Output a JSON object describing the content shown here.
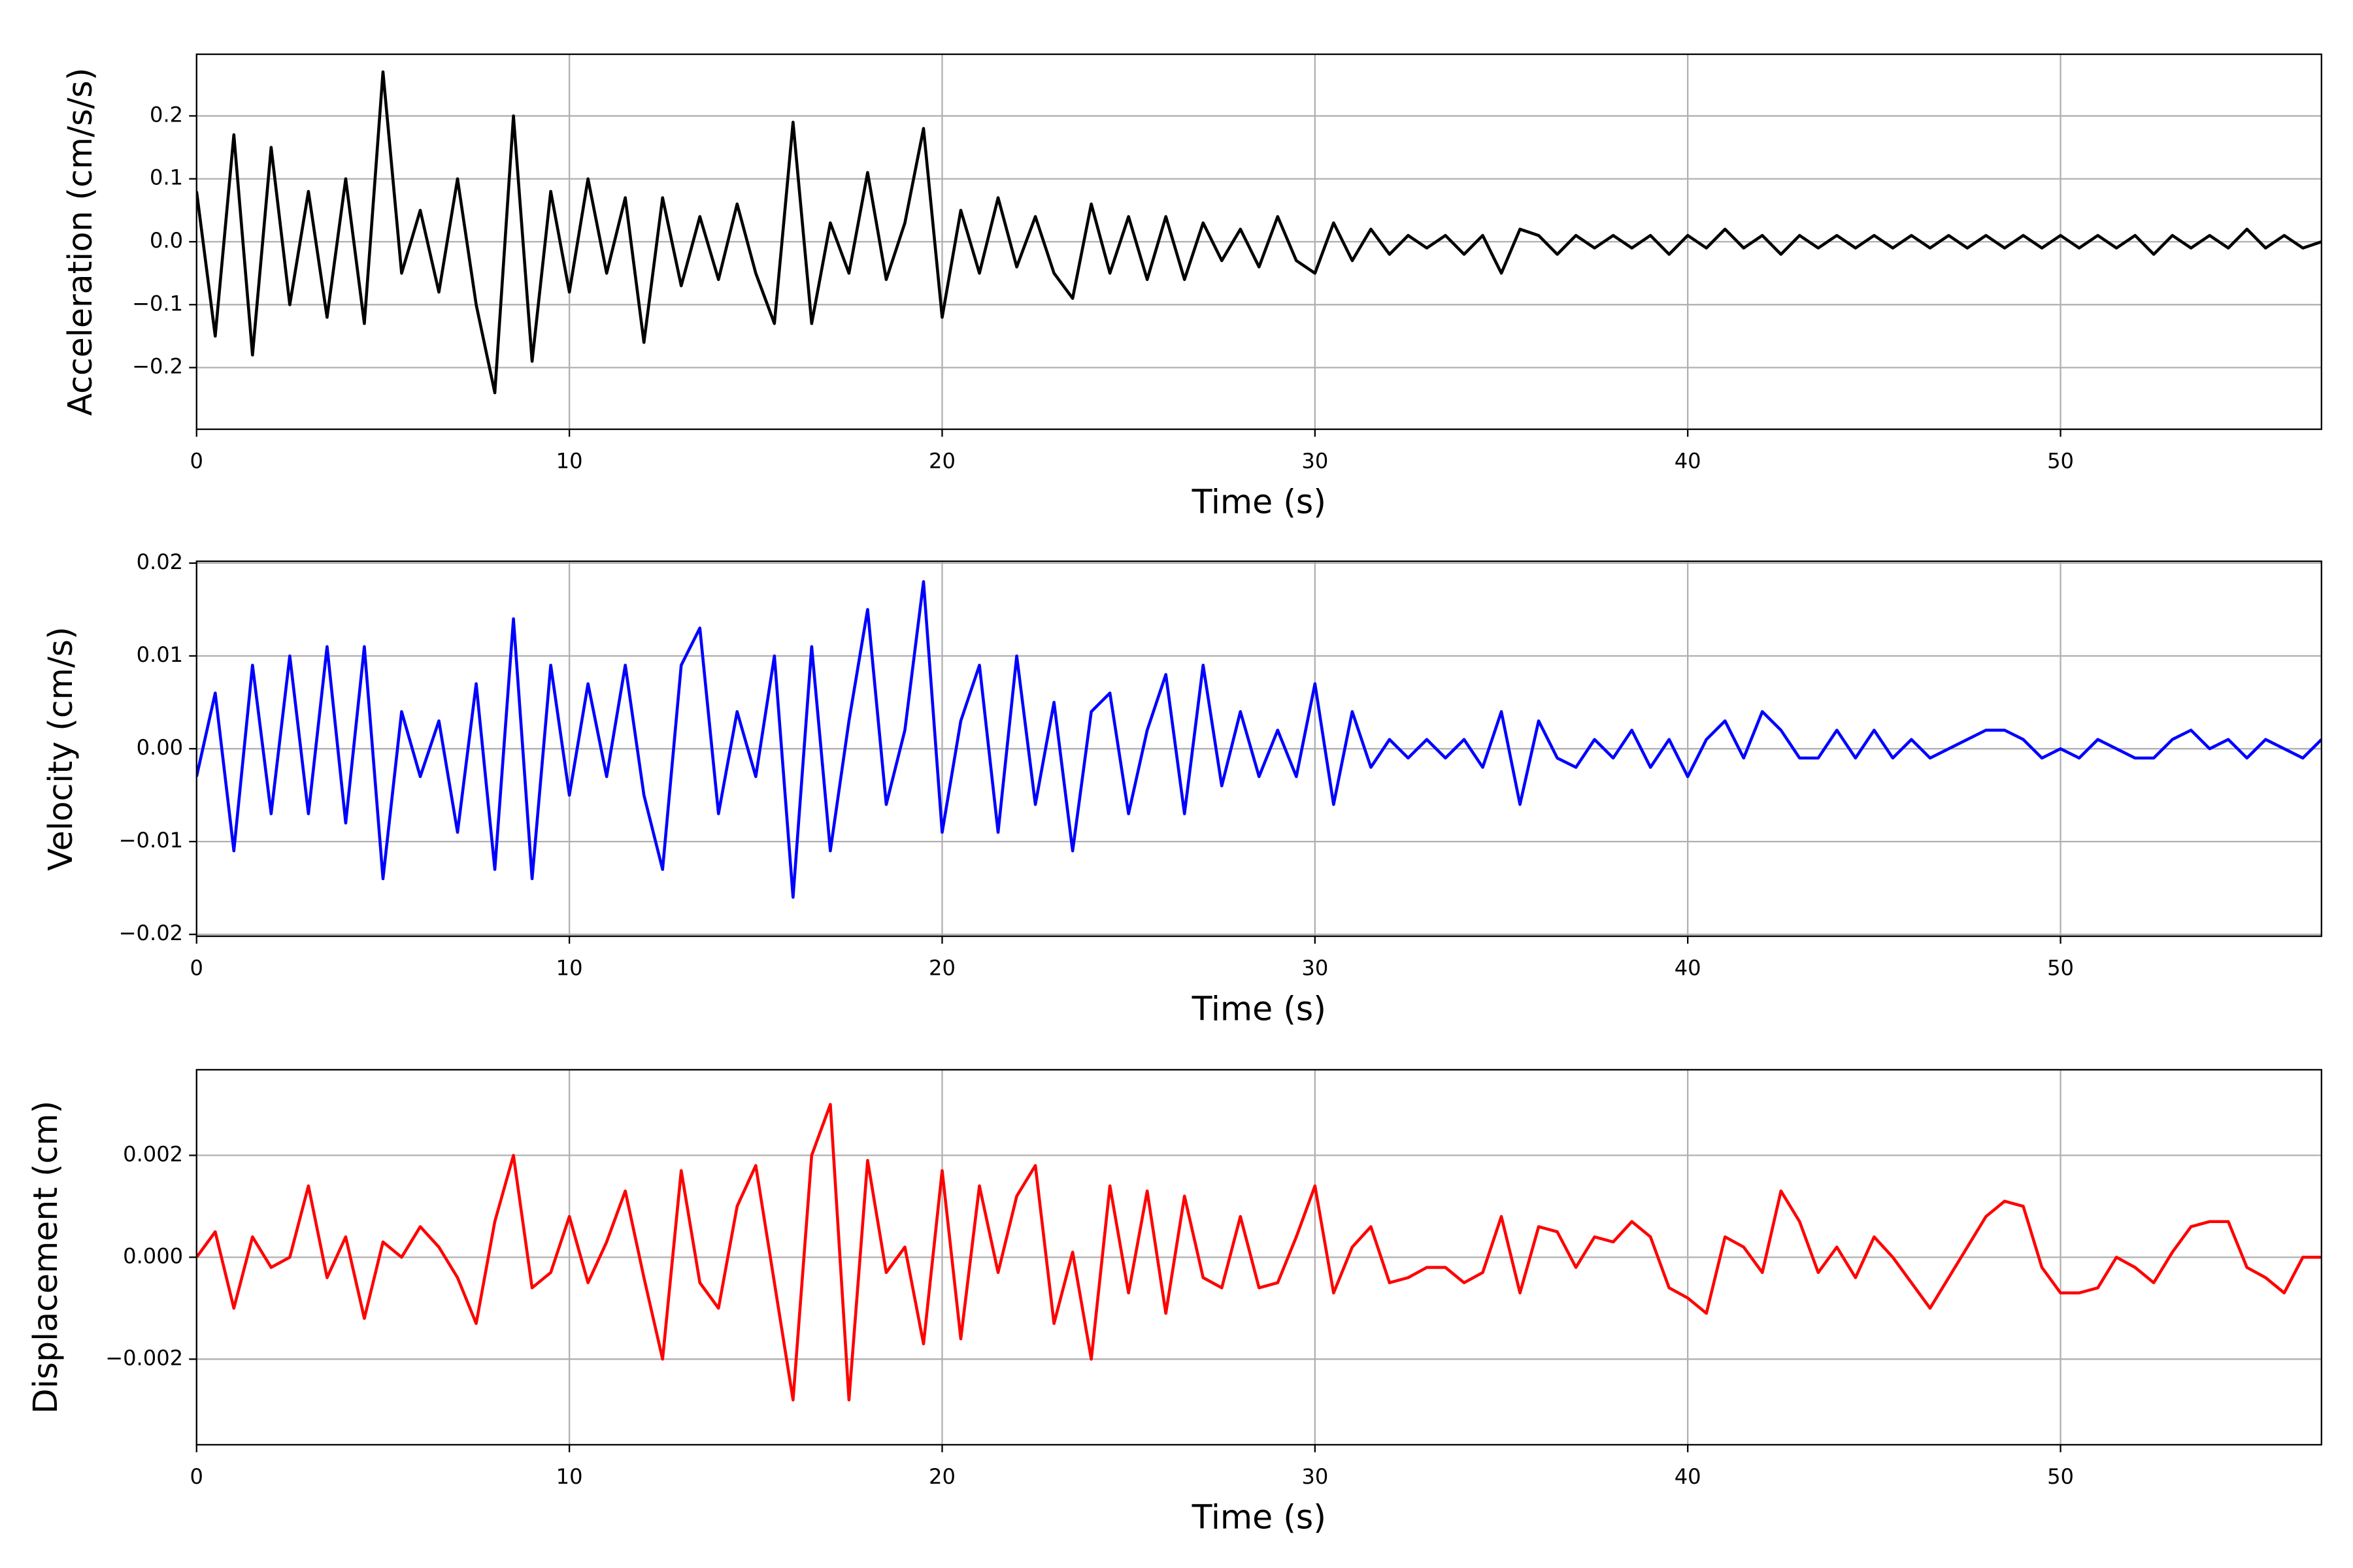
{
  "chart_data": [
    {
      "type": "line",
      "ylabel": "Acceleration (cm/s/s)",
      "xlabel": "Time (s)",
      "color": "#000000",
      "grid": true,
      "xlim": [
        0,
        57
      ],
      "xticks": [
        0,
        10,
        20,
        30,
        40,
        50
      ],
      "ylim": [
        -0.298,
        0.298
      ],
      "yticks": [
        {
          "value": -0.2,
          "label": "−0.2"
        },
        {
          "value": -0.1,
          "label": "−0.1"
        },
        {
          "value": 0,
          "label": "0.0"
        },
        0.1,
        0.2
      ],
      "x": [
        0,
        0.5,
        1,
        1.5,
        2,
        2.5,
        3,
        3.5,
        4,
        4.5,
        5,
        5.5,
        6,
        6.5,
        7,
        7.5,
        8,
        8.5,
        9,
        9.5,
        10,
        10.5,
        11,
        11.5,
        12,
        12.5,
        13,
        13.5,
        14,
        14.5,
        15,
        15.5,
        16,
        16.5,
        17,
        17.5,
        18,
        18.5,
        19,
        19.5,
        20,
        20.5,
        21,
        21.5,
        22,
        22.5,
        23,
        23.5,
        24,
        24.5,
        25,
        25.5,
        26,
        26.5,
        27,
        27.5,
        28,
        28.5,
        29,
        29.5,
        30,
        30.5,
        31,
        31.5,
        32,
        32.5,
        33,
        33.5,
        34,
        34.5,
        35,
        35.5,
        36,
        36.5,
        37,
        37.5,
        38,
        38.5,
        39,
        39.5,
        40,
        40.5,
        41,
        41.5,
        42,
        42.5,
        43,
        43.5,
        44,
        44.5,
        45,
        45.5,
        46,
        46.5,
        47,
        47.5,
        48,
        48.5,
        49,
        49.5,
        50,
        50.5,
        51,
        51.5,
        52,
        52.5,
        53,
        53.5,
        54,
        54.5,
        55,
        55.5,
        56,
        56.5,
        57
      ],
      "values": [
        0.08,
        -0.15,
        0.17,
        -0.18,
        0.15,
        -0.1,
        0.08,
        -0.12,
        0.1,
        -0.13,
        0.27,
        -0.05,
        0.05,
        -0.08,
        0.1,
        -0.1,
        -0.24,
        0.2,
        -0.19,
        0.08,
        -0.08,
        0.1,
        -0.05,
        0.07,
        -0.16,
        0.07,
        -0.07,
        0.04,
        -0.06,
        0.06,
        -0.05,
        -0.13,
        0.19,
        -0.13,
        0.03,
        -0.05,
        0.11,
        -0.06,
        0.03,
        0.18,
        -0.12,
        0.05,
        -0.05,
        0.07,
        -0.04,
        0.04,
        -0.05,
        -0.09,
        0.06,
        -0.05,
        0.04,
        -0.06,
        0.04,
        -0.06,
        0.03,
        -0.03,
        0.02,
        -0.04,
        0.04,
        -0.03,
        -0.05,
        0.03,
        -0.03,
        0.02,
        -0.02,
        0.01,
        -0.01,
        0.01,
        -0.02,
        0.01,
        -0.05,
        0.02,
        0.01,
        -0.02,
        0.01,
        -0.01,
        0.01,
        -0.01,
        0.01,
        -0.02,
        0.01,
        -0.01,
        0.02,
        -0.01,
        0.01,
        -0.02,
        0.01,
        -0.01,
        0.01,
        -0.01,
        0.01,
        -0.01,
        0.01,
        -0.01,
        0.01,
        -0.01,
        0.01,
        -0.01,
        0.01,
        -0.01,
        0.01,
        -0.01,
        0.01,
        -0.01,
        0.01,
        -0.02,
        0.01,
        -0.01,
        0.01,
        -0.01,
        0.02,
        -0.01,
        0.01,
        -0.01,
        0.0
      ]
    },
    {
      "type": "line",
      "ylabel": "Velocity (cm/s)",
      "xlabel": "Time (s)",
      "color": "#0000ff",
      "grid": true,
      "xlim": [
        0,
        57
      ],
      "xticks": [
        0,
        10,
        20,
        30,
        40,
        50
      ],
      "ylim": [
        -0.0202,
        0.0202
      ],
      "yticks": [
        {
          "value": -0.02,
          "label": "−0.02"
        },
        {
          "value": -0.01,
          "label": "−0.01"
        },
        {
          "value": 0,
          "label": "0.00"
        },
        0.01,
        0.02
      ],
      "x": [
        0,
        0.5,
        1,
        1.5,
        2,
        2.5,
        3,
        3.5,
        4,
        4.5,
        5,
        5.5,
        6,
        6.5,
        7,
        7.5,
        8,
        8.5,
        9,
        9.5,
        10,
        10.5,
        11,
        11.5,
        12,
        12.5,
        13,
        13.5,
        14,
        14.5,
        15,
        15.5,
        16,
        16.5,
        17,
        17.5,
        18,
        18.5,
        19,
        19.5,
        20,
        20.5,
        21,
        21.5,
        22,
        22.5,
        23,
        23.5,
        24,
        24.5,
        25,
        25.5,
        26,
        26.5,
        27,
        27.5,
        28,
        28.5,
        29,
        29.5,
        30,
        30.5,
        31,
        31.5,
        32,
        32.5,
        33,
        33.5,
        34,
        34.5,
        35,
        35.5,
        36,
        36.5,
        37,
        37.5,
        38,
        38.5,
        39,
        39.5,
        40,
        40.5,
        41,
        41.5,
        42,
        42.5,
        43,
        43.5,
        44,
        44.5,
        45,
        45.5,
        46,
        46.5,
        47,
        47.5,
        48,
        48.5,
        49,
        49.5,
        50,
        50.5,
        51,
        51.5,
        52,
        52.5,
        53,
        53.5,
        54,
        54.5,
        55,
        55.5,
        56,
        56.5,
        57
      ],
      "values": [
        -0.003,
        0.006,
        -0.011,
        0.009,
        -0.007,
        0.01,
        -0.007,
        0.011,
        -0.008,
        0.011,
        -0.014,
        0.004,
        -0.003,
        0.003,
        -0.009,
        0.007,
        -0.013,
        0.014,
        -0.014,
        0.009,
        -0.005,
        0.007,
        -0.003,
        0.009,
        -0.005,
        -0.013,
        0.009,
        0.013,
        -0.007,
        0.004,
        -0.003,
        0.01,
        -0.016,
        0.011,
        -0.011,
        0.003,
        0.015,
        -0.006,
        0.002,
        0.018,
        -0.009,
        0.003,
        0.009,
        -0.009,
        0.01,
        -0.006,
        0.005,
        -0.011,
        0.004,
        0.006,
        -0.007,
        0.002,
        0.008,
        -0.007,
        0.009,
        -0.004,
        0.004,
        -0.003,
        0.002,
        -0.003,
        0.007,
        -0.006,
        0.004,
        -0.002,
        0.001,
        -0.001,
        0.001,
        -0.001,
        0.001,
        -0.002,
        0.004,
        -0.006,
        0.003,
        -0.001,
        -0.002,
        0.001,
        -0.001,
        0.002,
        -0.002,
        0.001,
        -0.003,
        0.001,
        0.003,
        -0.001,
        0.004,
        0.002,
        -0.001,
        -0.001,
        0.002,
        -0.001,
        0.002,
        -0.001,
        0.001,
        -0.001,
        0.0,
        0.001,
        0.002,
        0.002,
        0.001,
        -0.001,
        0.0,
        -0.001,
        0.001,
        0.0,
        -0.001,
        -0.001,
        0.001,
        0.002,
        0.0,
        0.001,
        -0.001,
        0.001,
        0.0,
        -0.001,
        0.001
      ]
    },
    {
      "type": "line",
      "ylabel": "Displacement (cm)",
      "xlabel": "Time (s)",
      "color": "#ff0000",
      "grid": true,
      "xlim": [
        0,
        57
      ],
      "xticks": [
        0,
        10,
        20,
        30,
        40,
        50
      ],
      "ylim": [
        -0.00368,
        0.00368
      ],
      "yticks": [
        {
          "value": -0.002,
          "label": "−0.002"
        },
        {
          "value": 0,
          "label": "0.000"
        },
        0.002
      ],
      "x": [
        0,
        0.5,
        1,
        1.5,
        2,
        2.5,
        3,
        3.5,
        4,
        4.5,
        5,
        5.5,
        6,
        6.5,
        7,
        7.5,
        8,
        8.5,
        9,
        9.5,
        10,
        10.5,
        11,
        11.5,
        12,
        12.5,
        13,
        13.5,
        14,
        14.5,
        15,
        15.5,
        16,
        16.5,
        17,
        17.5,
        18,
        18.5,
        19,
        19.5,
        20,
        20.5,
        21,
        21.5,
        22,
        22.5,
        23,
        23.5,
        24,
        24.5,
        25,
        25.5,
        26,
        26.5,
        27,
        27.5,
        28,
        28.5,
        29,
        29.5,
        30,
        30.5,
        31,
        31.5,
        32,
        32.5,
        33,
        33.5,
        34,
        34.5,
        35,
        35.5,
        36,
        36.5,
        37,
        37.5,
        38,
        38.5,
        39,
        39.5,
        40,
        40.5,
        41,
        41.5,
        42,
        42.5,
        43,
        43.5,
        44,
        44.5,
        45,
        45.5,
        46,
        46.5,
        47,
        47.5,
        48,
        48.5,
        49,
        49.5,
        50,
        50.5,
        51,
        51.5,
        52,
        52.5,
        53,
        53.5,
        54,
        54.5,
        55,
        55.5,
        56,
        56.5,
        57
      ],
      "values": [
        0.0,
        0.0005,
        -0.001,
        0.0004,
        -0.0002,
        0.0,
        0.0014,
        -0.0004,
        0.0004,
        -0.0012,
        0.0003,
        0.0,
        0.0006,
        0.0002,
        -0.0004,
        -0.0013,
        0.0007,
        0.002,
        -0.0006,
        -0.0003,
        0.0008,
        -0.0005,
        0.0003,
        0.0013,
        -0.0004,
        -0.002,
        0.0017,
        -0.0005,
        -0.001,
        0.001,
        0.0018,
        -0.0005,
        -0.0028,
        0.002,
        0.003,
        -0.0028,
        0.0019,
        -0.0003,
        0.0002,
        -0.0017,
        0.0017,
        -0.0016,
        0.0014,
        -0.0003,
        0.0012,
        0.0018,
        -0.0013,
        0.0001,
        -0.002,
        0.0014,
        -0.0007,
        0.0013,
        -0.0011,
        0.0012,
        -0.0004,
        -0.0006,
        0.0008,
        -0.0006,
        -0.0005,
        0.0004,
        0.0014,
        -0.0007,
        0.0002,
        0.0006,
        -0.0005,
        -0.0004,
        -0.0002,
        -0.0002,
        -0.0005,
        -0.0003,
        0.0008,
        -0.0007,
        0.0006,
        0.0005,
        -0.0002,
        0.0004,
        0.0003,
        0.0007,
        0.0004,
        -0.0006,
        -0.0008,
        -0.0011,
        0.0004,
        0.0002,
        -0.0003,
        0.0013,
        0.0007,
        -0.0003,
        0.0002,
        -0.0004,
        0.0004,
        0.0,
        -0.0005,
        -0.001,
        -0.0004,
        0.0002,
        0.0008,
        0.0011,
        0.001,
        -0.0002,
        -0.0007,
        -0.0007,
        -0.0006,
        0.0,
        -0.0002,
        -0.0005,
        0.0001,
        0.0006,
        0.0007,
        0.0007,
        -0.0002,
        -0.0004,
        -0.0007,
        0.0,
        0.0
      ]
    }
  ]
}
